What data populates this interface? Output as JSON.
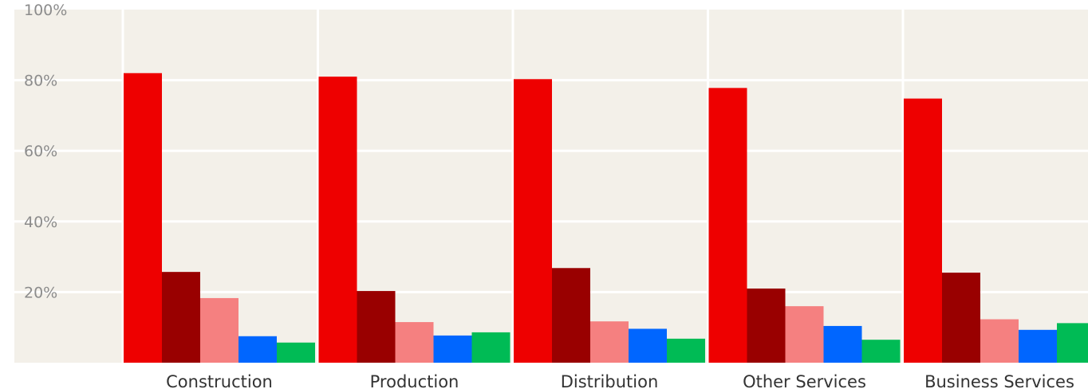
{
  "chart_data": {
    "type": "bar",
    "categories": [
      "Construction",
      "Production",
      "Distribution",
      "Other Services",
      "Business Services"
    ],
    "series": [
      {
        "color": "#ee0000",
        "values": [
          82,
          81,
          80.3,
          77.8,
          74.8
        ]
      },
      {
        "color": "#990000",
        "values": [
          25.7,
          20.3,
          26.8,
          21,
          25.5
        ]
      },
      {
        "color": "#f58080",
        "values": [
          18.3,
          11.5,
          11.7,
          16,
          12.3
        ]
      },
      {
        "color": "#0066ff",
        "values": [
          7.5,
          7.7,
          9.6,
          10.4,
          9.3
        ]
      },
      {
        "color": "#00bb55",
        "values": [
          5.7,
          8.6,
          6.8,
          6.5,
          11.2
        ]
      }
    ],
    "yticks": [
      "20%",
      "40%",
      "60%",
      "80%",
      "100%"
    ],
    "ylim": [
      0,
      100
    ],
    "grid": true,
    "background": "#f3f0e9",
    "gridColor": "#ffffff"
  }
}
